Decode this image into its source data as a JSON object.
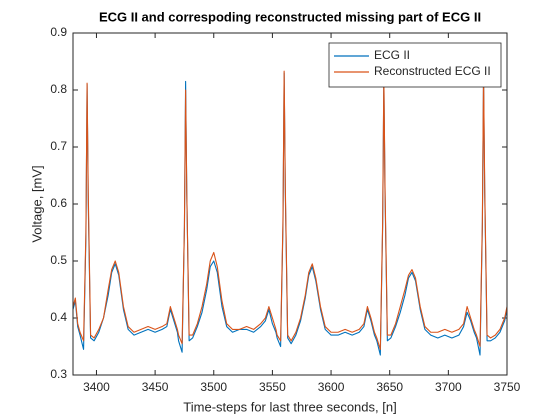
{
  "chart_data": {
    "type": "line",
    "title": "ECG II and correspoding reconstructed missing part of ECG II",
    "x_label": "Time-steps for last three seconds, [n]",
    "y_label": "Voltage, [mV]",
    "x": [
      3380,
      3382,
      3384,
      3386,
      3389,
      3391,
      3392,
      3393,
      3395,
      3398,
      3402,
      3406,
      3410,
      3413,
      3416,
      3419,
      3423,
      3427,
      3432,
      3438,
      3444,
      3450,
      3456,
      3460,
      3463,
      3466,
      3469,
      3470,
      3473,
      3475,
      3476,
      3477,
      3479,
      3482,
      3486,
      3490,
      3494,
      3497,
      3500,
      3503,
      3507,
      3511,
      3516,
      3522,
      3528,
      3534,
      3540,
      3544,
      3547,
      3550,
      3553,
      3554,
      3557,
      3559,
      3560,
      3561,
      3563,
      3566,
      3570,
      3574,
      3578,
      3581,
      3584,
      3587,
      3591,
      3595,
      3600,
      3606,
      3612,
      3618,
      3624,
      3628,
      3631,
      3634,
      3637,
      3639,
      3642,
      3644,
      3645,
      3646,
      3648,
      3651,
      3655,
      3659,
      3663,
      3666,
      3669,
      3672,
      3676,
      3680,
      3685,
      3691,
      3697,
      3703,
      3709,
      3713,
      3716,
      3719,
      3722,
      3724,
      3727,
      3729,
      3730,
      3731,
      3733,
      3736,
      3740,
      3744,
      3748,
      3750
    ],
    "series": [
      {
        "name": "ECG II",
        "color": "#0072BD",
        "values": [
          0.415,
          0.43,
          0.385,
          0.37,
          0.345,
          0.54,
          0.81,
          0.6,
          0.365,
          0.36,
          0.375,
          0.4,
          0.44,
          0.48,
          0.495,
          0.475,
          0.415,
          0.38,
          0.37,
          0.375,
          0.38,
          0.375,
          0.38,
          0.385,
          0.415,
          0.395,
          0.375,
          0.36,
          0.34,
          0.56,
          0.815,
          0.62,
          0.36,
          0.365,
          0.385,
          0.41,
          0.45,
          0.49,
          0.5,
          0.48,
          0.42,
          0.385,
          0.375,
          0.38,
          0.38,
          0.375,
          0.385,
          0.395,
          0.415,
          0.39,
          0.375,
          0.365,
          0.35,
          0.56,
          0.83,
          0.62,
          0.365,
          0.355,
          0.37,
          0.395,
          0.435,
          0.475,
          0.49,
          0.465,
          0.415,
          0.38,
          0.37,
          0.37,
          0.375,
          0.37,
          0.375,
          0.385,
          0.415,
          0.395,
          0.37,
          0.36,
          0.335,
          0.56,
          0.82,
          0.62,
          0.36,
          0.365,
          0.385,
          0.41,
          0.44,
          0.47,
          0.48,
          0.465,
          0.415,
          0.38,
          0.37,
          0.365,
          0.37,
          0.365,
          0.37,
          0.385,
          0.41,
          0.395,
          0.375,
          0.365,
          0.335,
          0.56,
          0.825,
          0.62,
          0.36,
          0.36,
          0.365,
          0.375,
          0.395,
          0.415
        ]
      },
      {
        "name": "Reconstructed ECG II",
        "color": "#D95319",
        "values": [
          0.42,
          0.435,
          0.39,
          0.375,
          0.36,
          0.55,
          0.812,
          0.62,
          0.37,
          0.365,
          0.38,
          0.4,
          0.45,
          0.485,
          0.5,
          0.48,
          0.42,
          0.385,
          0.375,
          0.38,
          0.385,
          0.38,
          0.385,
          0.39,
          0.42,
          0.4,
          0.38,
          0.37,
          0.355,
          0.56,
          0.8,
          0.62,
          0.37,
          0.37,
          0.39,
          0.42,
          0.46,
          0.5,
          0.515,
          0.49,
          0.43,
          0.39,
          0.38,
          0.38,
          0.385,
          0.38,
          0.39,
          0.4,
          0.42,
          0.4,
          0.38,
          0.37,
          0.36,
          0.57,
          0.833,
          0.63,
          0.37,
          0.36,
          0.375,
          0.4,
          0.44,
          0.48,
          0.495,
          0.47,
          0.42,
          0.385,
          0.375,
          0.375,
          0.38,
          0.375,
          0.38,
          0.39,
          0.42,
          0.4,
          0.375,
          0.365,
          0.345,
          0.57,
          0.825,
          0.63,
          0.37,
          0.37,
          0.39,
          0.42,
          0.45,
          0.475,
          0.485,
          0.47,
          0.42,
          0.385,
          0.375,
          0.375,
          0.38,
          0.375,
          0.38,
          0.39,
          0.42,
          0.4,
          0.38,
          0.37,
          0.35,
          0.57,
          0.83,
          0.63,
          0.37,
          0.365,
          0.37,
          0.38,
          0.4,
          0.42
        ]
      }
    ],
    "xlim": [
      3380,
      3750
    ],
    "xticks": [
      3400,
      3450,
      3500,
      3550,
      3600,
      3650,
      3700,
      3750
    ],
    "ylim": [
      0.3,
      0.9
    ],
    "yticks": [
      0.3,
      0.4,
      0.5,
      0.6,
      0.7,
      0.8,
      0.9
    ],
    "legend": "northeast"
  }
}
